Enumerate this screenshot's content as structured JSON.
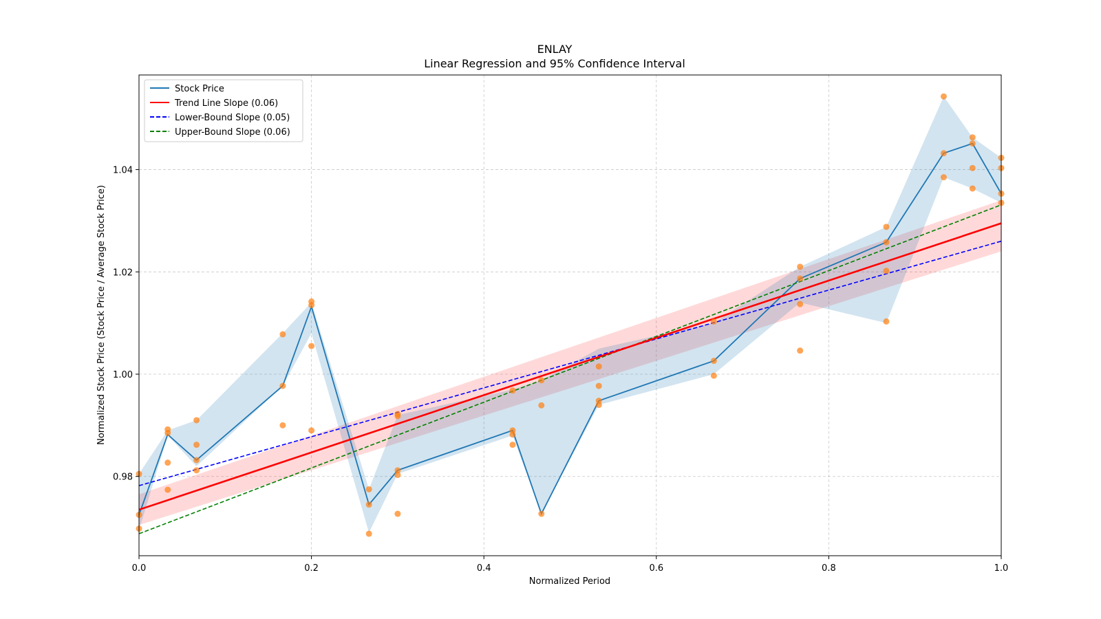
{
  "chart_data": {
    "type": "line",
    "title": "ENLAY",
    "subtitle": "Linear Regression and 95% Confidence Interval",
    "xlabel": "Normalized Period",
    "ylabel": "Normalized Stock Price (Stock Price / Average Stock Price)",
    "xlim": [
      0.0,
      1.0
    ],
    "ylim": [
      0.9645,
      1.0585
    ],
    "xticks": [
      0.0,
      0.2,
      0.4,
      0.6,
      0.8,
      1.0
    ],
    "xtick_labels": [
      "0.0",
      "0.2",
      "0.4",
      "0.6",
      "0.8",
      "1.0"
    ],
    "yticks": [
      0.98,
      1.0,
      1.02,
      1.04
    ],
    "ytick_labels": [
      "0.98",
      "1.00",
      "1.02",
      "1.04"
    ],
    "grid": true,
    "legend_position": "top-left",
    "legend": [
      {
        "label": "Stock Price",
        "color": "#1f77b4",
        "style": "solid"
      },
      {
        "label": "Trend Line Slope (0.06)",
        "color": "#ff0000",
        "style": "solid"
      },
      {
        "label": "Lower-Bound Slope (0.05)",
        "color": "#0000ff",
        "style": "dashed"
      },
      {
        "label": "Upper-Bound Slope (0.06)",
        "color": "#008000",
        "style": "dashed"
      }
    ],
    "stock_price": {
      "name": "Stock Price",
      "color": "#1f77b4",
      "x": [
        0.0,
        0.0333,
        0.0667,
        0.1667,
        0.2,
        0.2667,
        0.3,
        0.4333,
        0.4667,
        0.5333,
        0.6667,
        0.7667,
        0.8667,
        0.9333,
        0.9667,
        1.0
      ],
      "y": [
        0.9725,
        0.9882,
        0.9832,
        0.9977,
        1.0132,
        0.9745,
        0.9812,
        0.989,
        0.9727,
        0.9948,
        1.0026,
        1.0187,
        1.0258,
        1.0432,
        1.0451,
        1.0353
      ],
      "band_low": [
        0.9695,
        0.988,
        0.982,
        0.9977,
        1.008,
        0.969,
        0.9805,
        0.988,
        0.9727,
        0.994,
        1.0,
        1.014,
        1.01,
        1.0385,
        1.0363,
        1.0335
      ],
      "band_high": [
        0.9805,
        0.989,
        0.991,
        1.008,
        1.014,
        0.9775,
        0.992,
        0.997,
        0.9988,
        1.005,
        1.01,
        1.021,
        1.0288,
        1.0543,
        1.0463,
        1.0423
      ],
      "band_color": "#1f77b4"
    },
    "scatter": {
      "name": "Observations",
      "color": "#ff7f0e",
      "points": [
        [
          0.0,
          0.9805
        ],
        [
          0.0,
          0.9725
        ],
        [
          0.0,
          0.9698
        ],
        [
          0.0333,
          0.9892
        ],
        [
          0.0333,
          0.9885
        ],
        [
          0.0333,
          0.9827
        ],
        [
          0.0333,
          0.9774
        ],
        [
          0.0667,
          0.991
        ],
        [
          0.0667,
          0.9862
        ],
        [
          0.0667,
          0.9832
        ],
        [
          0.0667,
          0.9812
        ],
        [
          0.1667,
          1.0078
        ],
        [
          0.1667,
          0.9977
        ],
        [
          0.1667,
          0.99
        ],
        [
          0.2,
          1.0142
        ],
        [
          0.2,
          1.0135
        ],
        [
          0.2,
          1.0055
        ],
        [
          0.2,
          0.989
        ],
        [
          0.2667,
          0.9745
        ],
        [
          0.2667,
          0.9775
        ],
        [
          0.2667,
          0.9688
        ],
        [
          0.3,
          0.9922
        ],
        [
          0.3,
          0.9918
        ],
        [
          0.3,
          0.9812
        ],
        [
          0.3,
          0.9803
        ],
        [
          0.3,
          0.9727
        ],
        [
          0.4333,
          0.9968
        ],
        [
          0.4333,
          0.989
        ],
        [
          0.4333,
          0.9882
        ],
        [
          0.4333,
          0.9862
        ],
        [
          0.4667,
          0.9988
        ],
        [
          0.4667,
          0.9939
        ],
        [
          0.4667,
          0.9727
        ],
        [
          0.5333,
          1.0015
        ],
        [
          0.5333,
          0.9977
        ],
        [
          0.5333,
          0.9948
        ],
        [
          0.5333,
          0.994
        ],
        [
          0.6667,
          1.0026
        ],
        [
          0.6667,
          0.9997
        ],
        [
          0.6667,
          1.0103
        ],
        [
          0.7667,
          1.021
        ],
        [
          0.7667,
          1.0187
        ],
        [
          0.7667,
          1.0137
        ],
        [
          0.7667,
          1.0046
        ],
        [
          0.8667,
          1.0288
        ],
        [
          0.8667,
          1.0258
        ],
        [
          0.8667,
          1.0202
        ],
        [
          0.8667,
          1.0103
        ],
        [
          0.9333,
          1.0543
        ],
        [
          0.9333,
          1.0432
        ],
        [
          0.9333,
          1.0385
        ],
        [
          0.9667,
          1.0463
        ],
        [
          0.9667,
          1.0451
        ],
        [
          0.9667,
          1.0403
        ],
        [
          0.9667,
          1.0363
        ],
        [
          1.0,
          1.0423
        ],
        [
          1.0,
          1.0403
        ],
        [
          1.0,
          1.0353
        ],
        [
          1.0,
          1.0335
        ]
      ]
    },
    "trend_line": {
      "name": "Trend Line Slope (0.06)",
      "color": "#ff0000",
      "intercept": 0.9735,
      "slope": 0.056
    },
    "trend_band": {
      "color": "#ff0000",
      "low_at_0": 0.9705,
      "high_at_0": 0.9765,
      "low_at_1": 1.024,
      "high_at_1": 1.034
    },
    "lower_bound_line": {
      "name": "Lower-Bound Slope (0.05)",
      "color": "#0000ff",
      "intercept": 0.9782,
      "slope": 0.0478
    },
    "upper_bound_line": {
      "name": "Upper-Bound Slope (0.06)",
      "color": "#008000",
      "intercept": 0.9688,
      "slope": 0.0643
    }
  }
}
